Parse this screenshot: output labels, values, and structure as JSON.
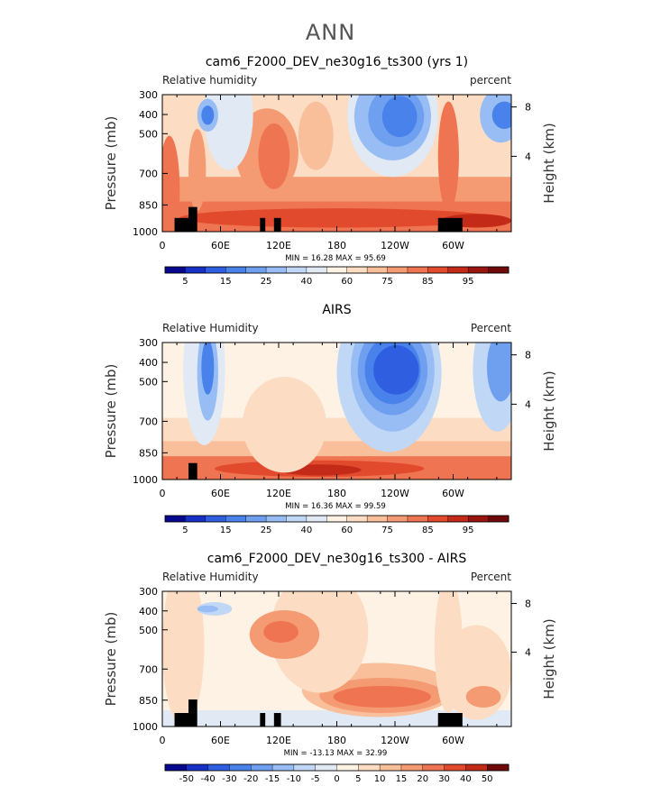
{
  "page_title": "ANN",
  "chart_data": [
    {
      "type": "heatmap",
      "title": "cam6_F2000_DEV_ne30g16_ts300 (yrs 1)",
      "left_label": "Relative humidity",
      "right_label": "percent",
      "ylabel": "Pressure (mb)",
      "ylabel_right": "Height (km)",
      "y_ticks": [
        "300",
        "400",
        "500",
        "700",
        "850",
        "1000"
      ],
      "y_ticks_right": [
        "8",
        "4"
      ],
      "x_ticks": [
        "0",
        "60E",
        "120E",
        "180",
        "120W",
        "60W"
      ],
      "stats": "MIN =   16.28   MAX =   95.69",
      "colorbar_labels": [
        "5",
        "15",
        "25",
        "40",
        "60",
        "75",
        "85",
        "95"
      ],
      "colorbar_colors": [
        "#08088f",
        "#1730c8",
        "#2f5fe0",
        "#4a82eb",
        "#6fa0f0",
        "#97bdf4",
        "#c0d7f6",
        "#e0e9f4",
        "#fdf2e4",
        "#fcdcc2",
        "#f9bf9b",
        "#f59b73",
        "#ef7451",
        "#e24a2d",
        "#c42a18",
        "#9a1510",
        "#700a0a"
      ]
    },
    {
      "type": "heatmap",
      "title": "AIRS",
      "left_label": "Relative Humidity",
      "right_label": "Percent",
      "ylabel": "Pressure (mb)",
      "ylabel_right": "Height (km)",
      "y_ticks": [
        "300",
        "400",
        "500",
        "700",
        "850",
        "1000"
      ],
      "y_ticks_right": [
        "8",
        "4"
      ],
      "x_ticks": [
        "0",
        "60E",
        "120E",
        "180",
        "120W",
        "60W"
      ],
      "stats": "MIN =   16.36   MAX =   99.59",
      "colorbar_labels": [
        "5",
        "15",
        "25",
        "40",
        "60",
        "75",
        "85",
        "95"
      ],
      "colorbar_colors": [
        "#08088f",
        "#1730c8",
        "#2f5fe0",
        "#4a82eb",
        "#6fa0f0",
        "#97bdf4",
        "#c0d7f6",
        "#e0e9f4",
        "#fdf2e4",
        "#fcdcc2",
        "#f9bf9b",
        "#f59b73",
        "#ef7451",
        "#e24a2d",
        "#c42a18",
        "#9a1510",
        "#700a0a"
      ]
    },
    {
      "type": "heatmap",
      "title": "cam6_F2000_DEV_ne30g16_ts300 - AIRS",
      "left_label": "Relative Humidity",
      "right_label": "Percent",
      "ylabel": "Pressure (mb)",
      "ylabel_right": "Height (km)",
      "y_ticks": [
        "300",
        "400",
        "500",
        "700",
        "850",
        "1000"
      ],
      "y_ticks_right": [
        "8",
        "4"
      ],
      "x_ticks": [
        "0",
        "60E",
        "120E",
        "180",
        "120W",
        "60W"
      ],
      "stats": "MIN = -13.13   MAX =   32.99",
      "colorbar_labels": [
        "-50",
        "-40",
        "-30",
        "-20",
        "-15",
        "-10",
        "-5",
        "0",
        "5",
        "10",
        "15",
        "20",
        "30",
        "40",
        "50"
      ],
      "colorbar_colors": [
        "#08088f",
        "#1730c8",
        "#2f5fe0",
        "#4a82eb",
        "#6fa0f0",
        "#97bdf4",
        "#c0d7f6",
        "#e0e9f4",
        "#fdf2e4",
        "#fcdcc2",
        "#f9bf9b",
        "#f59b73",
        "#ef7451",
        "#e24a2d",
        "#c42a18",
        "#700a0a"
      ]
    }
  ]
}
